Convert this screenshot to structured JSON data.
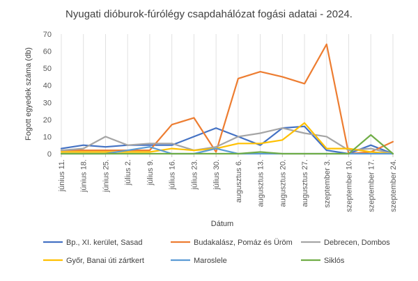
{
  "chart_data": {
    "type": "line",
    "title": "Nyugati dióburok-fúrólégy csapdahálózat fogási adatai - 2024.",
    "xlabel": "Dátum",
    "ylabel": "Fogott egyedek száma (db)",
    "ylim": [
      0,
      70
    ],
    "yticks": [
      0,
      10,
      20,
      30,
      40,
      50,
      60,
      70
    ],
    "grid": "vertical",
    "legend_position": "bottom",
    "categories": [
      "június 11.",
      "június 18.",
      "június 25.",
      "július 2.",
      "július 9.",
      "július 16.",
      "július 23.",
      "július 30.",
      "augusztus 6.",
      "augusztus 13.",
      "augusztus 20.",
      "augusztus 27.",
      "szeptember 3.",
      "szeptember 10.",
      "szeptember 17.",
      "szeptember 24."
    ],
    "series": [
      {
        "name": "Bp., XI. kerület, Sasad",
        "color": "#4472C4",
        "values": [
          3,
          5,
          4,
          5,
          5,
          5,
          10,
          15,
          10,
          5,
          15,
          16,
          2,
          0,
          5,
          0
        ]
      },
      {
        "name": "Budakalász, Pomáz és Üröm",
        "color": "#ED7D31",
        "values": [
          2,
          2,
          2,
          2,
          2,
          17,
          21,
          1,
          44,
          48,
          45,
          41,
          64,
          0,
          1,
          7
        ]
      },
      {
        "name": "Debrecen, Dombos",
        "color": "#A5A5A5",
        "values": [
          2,
          3,
          10,
          5,
          6,
          6,
          2,
          4,
          10,
          12,
          15,
          12,
          10,
          2,
          3,
          0
        ]
      },
      {
        "name": "Győr, Banai úti zártkert",
        "color": "#FFC000",
        "values": [
          1,
          1,
          1,
          1,
          1,
          3,
          2,
          3,
          6,
          6,
          8,
          18,
          3,
          3,
          1,
          0
        ]
      },
      {
        "name": "Maroslele",
        "color": "#5B9BD5",
        "values": [
          0,
          0,
          0,
          2,
          4,
          0,
          0,
          3,
          0,
          0,
          0,
          0,
          0,
          0,
          0,
          0
        ]
      },
      {
        "name": "Siklós",
        "color": "#70AD47",
        "values": [
          0,
          0,
          0,
          0,
          0,
          0,
          0,
          0,
          0,
          1,
          0,
          0,
          0,
          0,
          11,
          0
        ]
      }
    ]
  }
}
